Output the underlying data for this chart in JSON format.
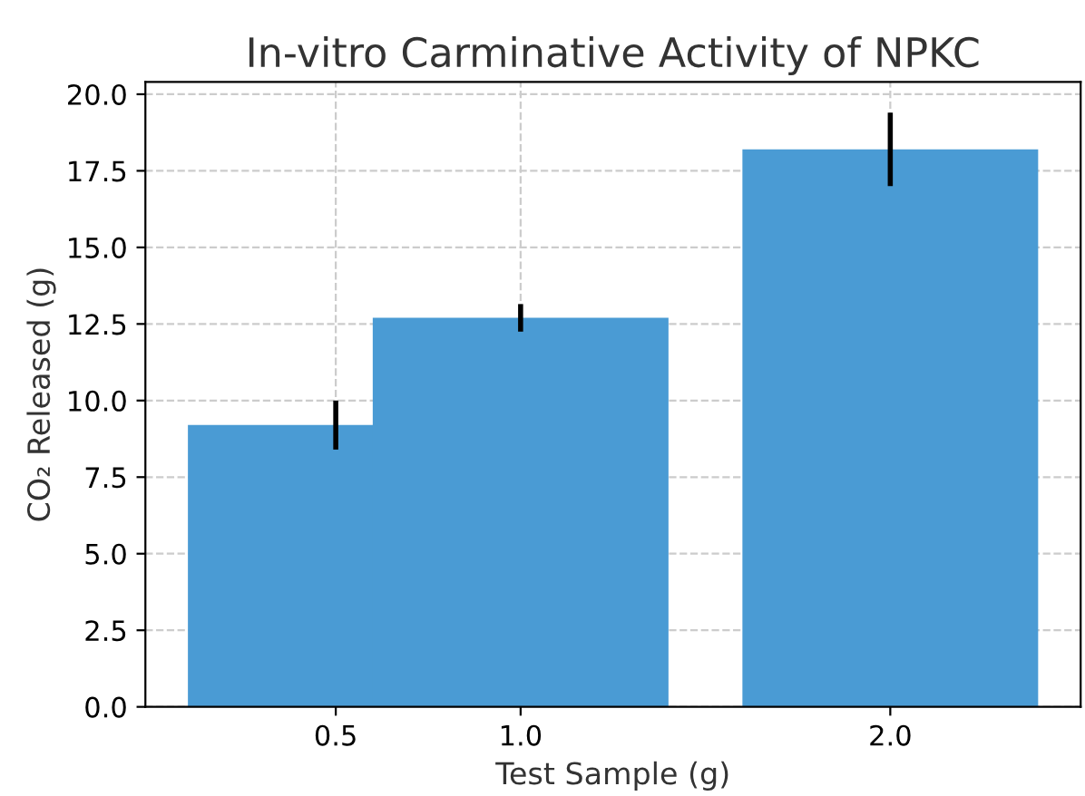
{
  "chart_data": {
    "type": "bar",
    "title": "In-vitro Carminative Activity of NPKC",
    "xlabel": "Test Sample (g)",
    "ylabel": "CO₂ Released (g)",
    "x": [
      0.5,
      1.0,
      2.0
    ],
    "values": [
      9.2,
      12.7,
      18.2
    ],
    "errors": [
      0.8,
      0.45,
      1.2
    ],
    "color": "#4a9bd4",
    "xlim": [
      -0.015,
      2.515
    ],
    "xticks": [
      {
        "value": 0.5,
        "label": "0.5"
      },
      {
        "value": 1.0,
        "label": "1.0"
      },
      {
        "value": 2.0,
        "label": "2.0"
      }
    ],
    "ylim": [
      0,
      20.4
    ],
    "yticks": [
      {
        "value": 0,
        "label": "0.0"
      },
      {
        "value": 2.5,
        "label": "2.5"
      },
      {
        "value": 5,
        "label": "5.0"
      },
      {
        "value": 7.5,
        "label": "7.5"
      },
      {
        "value": 10,
        "label": "10.0"
      },
      {
        "value": 12.5,
        "label": "12.5"
      },
      {
        "value": 15,
        "label": "15.0"
      },
      {
        "value": 17.5,
        "label": "17.5"
      },
      {
        "value": 20,
        "label": "20.0"
      }
    ],
    "grid": true
  }
}
